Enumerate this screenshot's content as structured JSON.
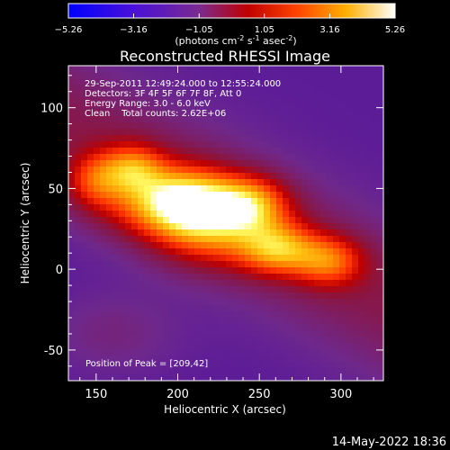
{
  "chart_data": {
    "type": "heatmap",
    "title": "Reconstructed RHESSI Image",
    "xlabel": "Heliocentric X (arcsec)",
    "ylabel": "Heliocentric Y (arcsec)",
    "xlim": [
      133,
      326
    ],
    "ylim": [
      -69,
      126
    ],
    "x_ticks": [
      150,
      200,
      250,
      300
    ],
    "y_ticks": [
      -50,
      0,
      50,
      100
    ],
    "colorbar": {
      "label_unit": "(photons cm",
      "label_exp1": "-2",
      "label_mid": " s",
      "label_exp2": "-1",
      "label_tail": " asec",
      "label_exp3": "-2",
      "label_close": ")",
      "range": [
        -5.26,
        5.26
      ],
      "ticks": [
        "−5.26",
        "−3.16",
        "−1.05",
        "1.05",
        "3.16",
        "5.26"
      ],
      "tick_values": [
        -5.26,
        -3.16,
        -1.05,
        1.05,
        3.16,
        5.26
      ]
    },
    "annotations": [
      "29-Sep-2011 12:49:24.000 to 12:55:24.000",
      "Detectors: 3F 4F 5F 6F 7F 8F, Att 0",
      "Energy Range: 3.0 - 6.0 keV",
      "Clean    Total counts: 2.62E+06"
    ],
    "peak_label": "Position of Peak = [209,42]",
    "peak": [
      209,
      42
    ],
    "blobs": [
      {
        "x": 209,
        "y": 42,
        "amp": 5.3,
        "sx": 20,
        "sy": 15
      },
      {
        "x": 172,
        "y": 62,
        "amp": 4.1,
        "sx": 14,
        "sy": 11
      },
      {
        "x": 245,
        "y": 41,
        "amp": 4.3,
        "sx": 16,
        "sy": 12
      },
      {
        "x": 262,
        "y": 12,
        "amp": 4.2,
        "sx": 16,
        "sy": 11
      },
      {
        "x": 293,
        "y": 5,
        "amp": 3.6,
        "sx": 15,
        "sy": 11
      },
      {
        "x": 225,
        "y": 22,
        "amp": 3.0,
        "sx": 28,
        "sy": 16
      },
      {
        "x": 185,
        "y": 40,
        "amp": 2.8,
        "sx": 26,
        "sy": 14
      },
      {
        "x": 148,
        "y": 55,
        "amp": 2.0,
        "sx": 12,
        "sy": 12
      }
    ],
    "background": -2.6
  },
  "footer": {
    "timestamp": "14-May-2022 18:36"
  },
  "colors": {
    "colormap": [
      "#0000ff",
      "#5a00c0",
      "#6a2a9a",
      "#aa0000",
      "#ff4000",
      "#ffa000",
      "#ffff60",
      "#ffffff"
    ]
  }
}
